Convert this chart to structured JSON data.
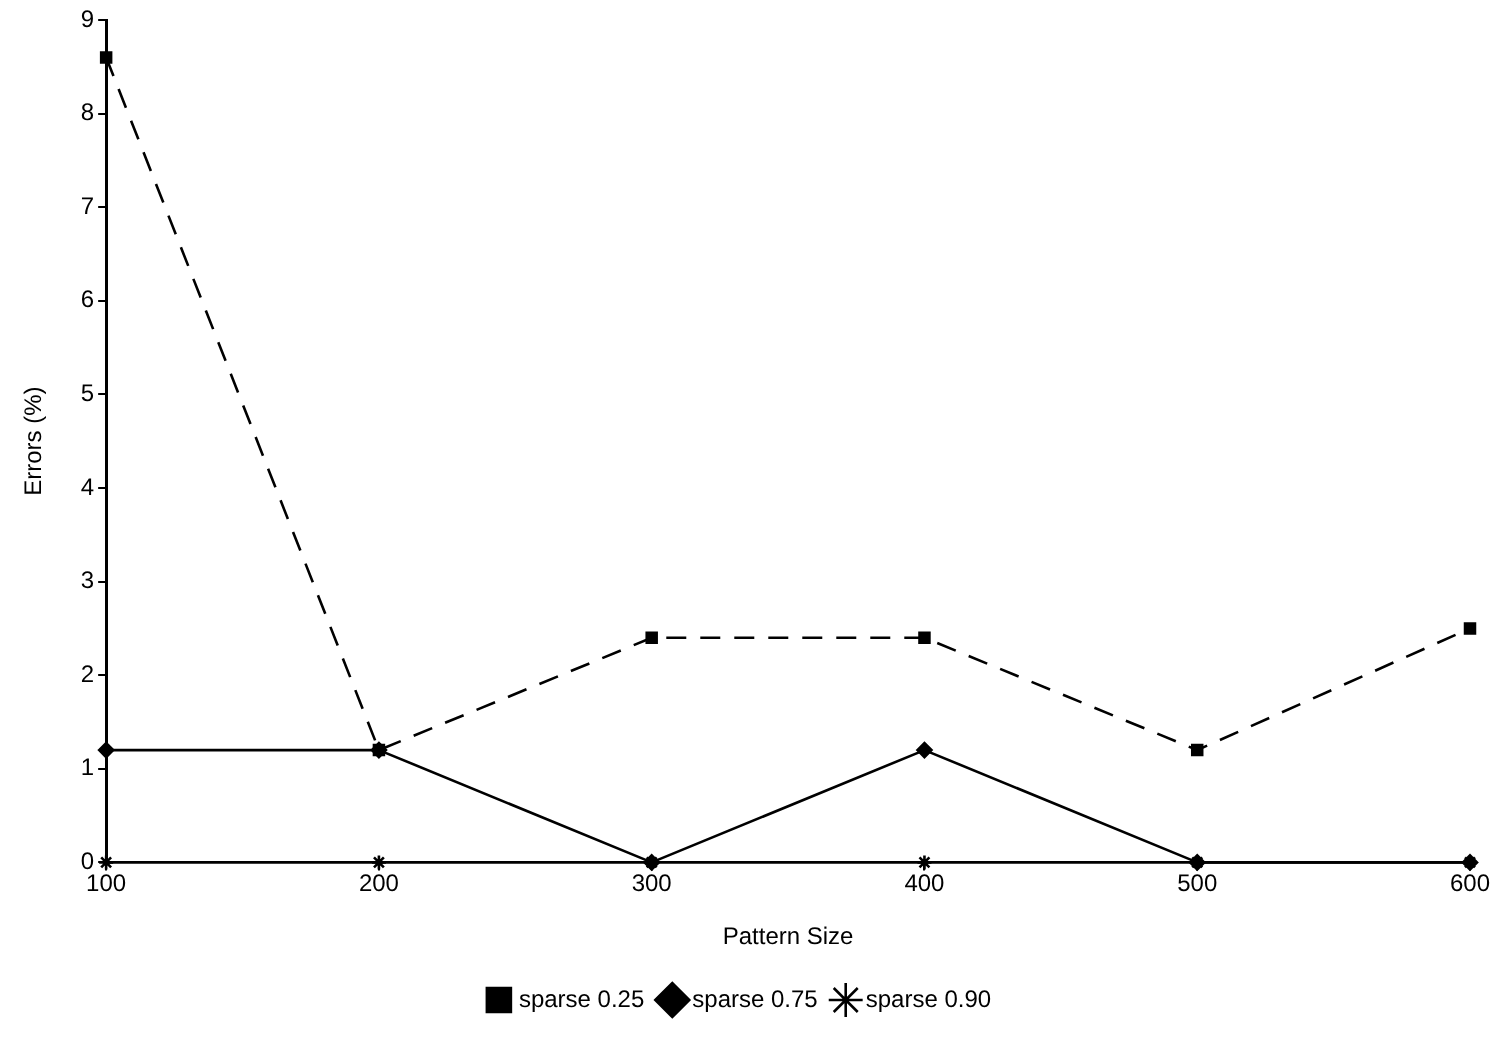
{
  "chart_data": {
    "type": "line",
    "xlabel": "Pattern Size",
    "ylabel": "Errors (%)",
    "x": [
      100,
      200,
      300,
      400,
      500,
      600
    ],
    "xlim": [
      100,
      600
    ],
    "xticks": [
      100,
      200,
      300,
      400,
      500,
      600
    ],
    "ylim": [
      0,
      9
    ],
    "yticks": [
      0,
      1,
      2,
      3,
      4,
      5,
      6,
      7,
      8,
      9
    ],
    "grid": false,
    "legend": "bottom",
    "series": [
      {
        "name": "sparse 0.25",
        "color": "#000000",
        "marker": "square",
        "line_style": "dashed",
        "values": [
          8.6,
          1.2,
          2.4,
          2.4,
          1.2,
          2.5
        ]
      },
      {
        "name": "sparse 0.75",
        "color": "#000000",
        "marker": "diamond",
        "line_style": "solid",
        "values": [
          1.2,
          1.2,
          0,
          1.2,
          0,
          0
        ]
      },
      {
        "name": "sparse 0.90",
        "color": "#000000",
        "marker": "cross",
        "line_style": "solid",
        "values": [
          0,
          0,
          0,
          0,
          0,
          0
        ]
      }
    ]
  }
}
